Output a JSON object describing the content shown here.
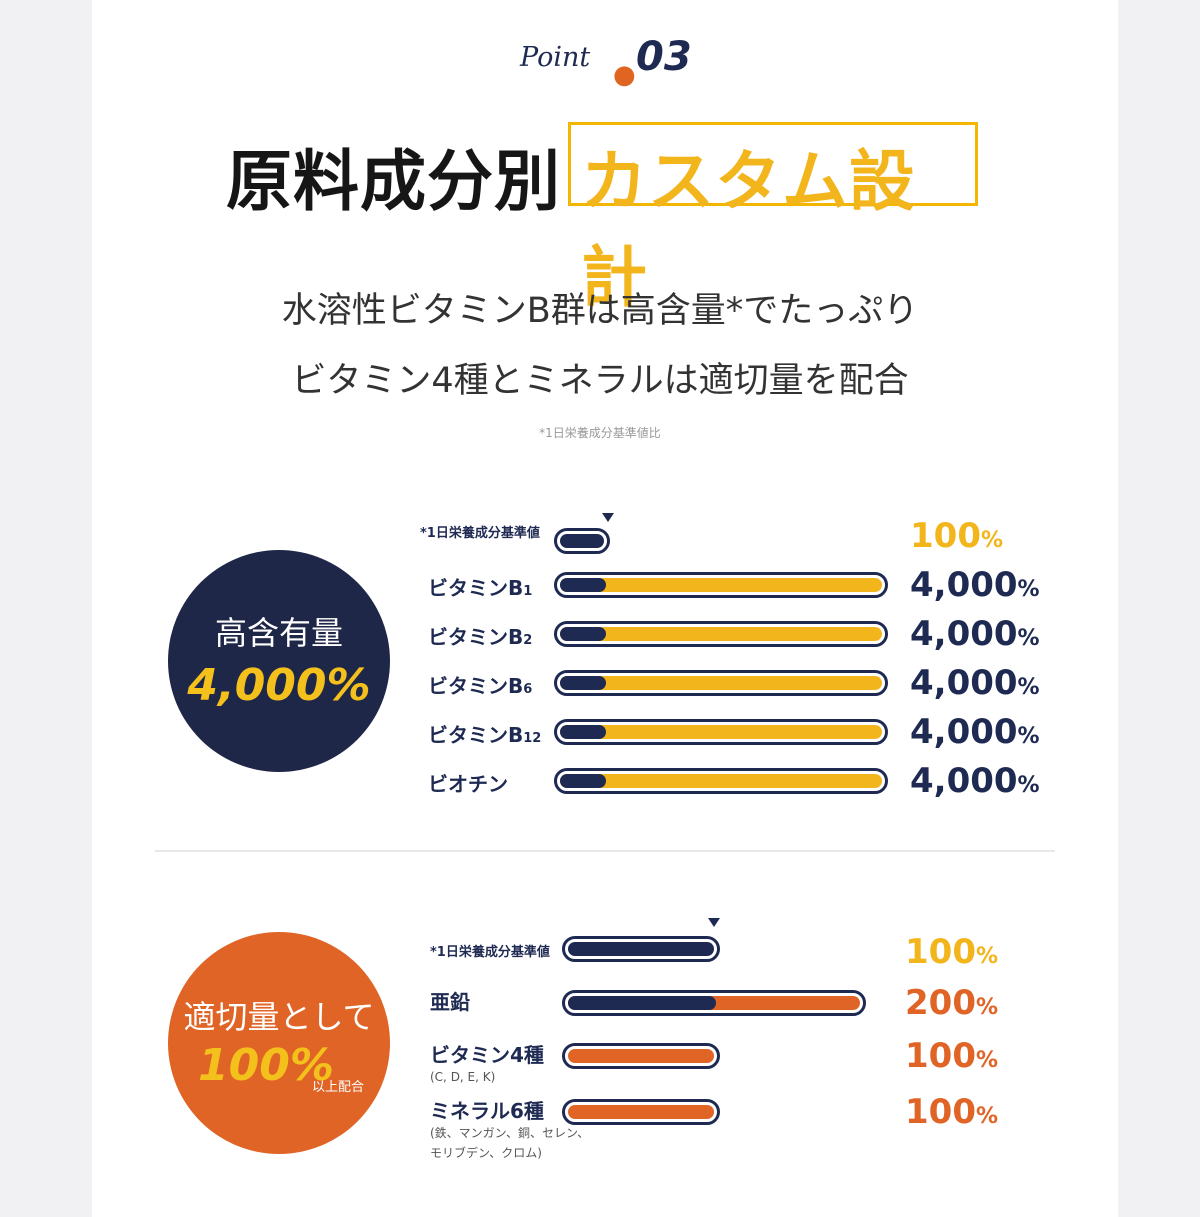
{
  "point": {
    "script": "Point",
    "number": "03"
  },
  "headline": {
    "part1": "原料成分別",
    "part2": "カスタム設計"
  },
  "subtitle": {
    "line1": "水溶性ビタミンB群は高含量*でたっぷり",
    "line2": "ビタミン4種とミネラルは適切量を配合"
  },
  "footnote": "*1日栄養成分基準値比",
  "colors": {
    "navy": "#1e2a52",
    "yellow": "#f3b51c",
    "orange": "#df6426"
  },
  "chart_data": [
    {
      "type": "bar",
      "badge": {
        "line1": "高含有量",
        "line2": "4,000%"
      },
      "reference": {
        "label": "*1日栄養成分基準値",
        "value": 100,
        "value_label": "100",
        "unit": "%"
      },
      "categories": [
        "ビタミンB1",
        "ビタミンB2",
        "ビタミンB6",
        "ビタミンB12",
        "ビオチン"
      ],
      "label_base": [
        "ビタミンB",
        "ビタミンB",
        "ビタミンB",
        "ビタミンB",
        "ビオチン"
      ],
      "label_sub": [
        "1",
        "2",
        "6",
        "12",
        ""
      ],
      "values": [
        4000,
        4000,
        4000,
        4000,
        4000
      ],
      "value_labels": [
        "4,000",
        "4,000",
        "4,000",
        "4,000",
        "4,000"
      ],
      "unit": "%"
    },
    {
      "type": "bar",
      "badge": {
        "line1": "適切量として",
        "line2": "100%",
        "line3": "以上配合"
      },
      "reference": {
        "label": "*1日栄養成分基準値",
        "value": 100,
        "value_label": "100",
        "unit": "%"
      },
      "categories": [
        "亜鉛",
        "ビタミン4種",
        "ミネラル6種"
      ],
      "sublabels": [
        "",
        "(C, D, E, K)",
        "(鉄、マンガン、銅、セレン、モリブデン、クロム)"
      ],
      "values": [
        200,
        100,
        100
      ],
      "value_labels": [
        "200",
        "100",
        "100"
      ],
      "unit": "%"
    }
  ]
}
